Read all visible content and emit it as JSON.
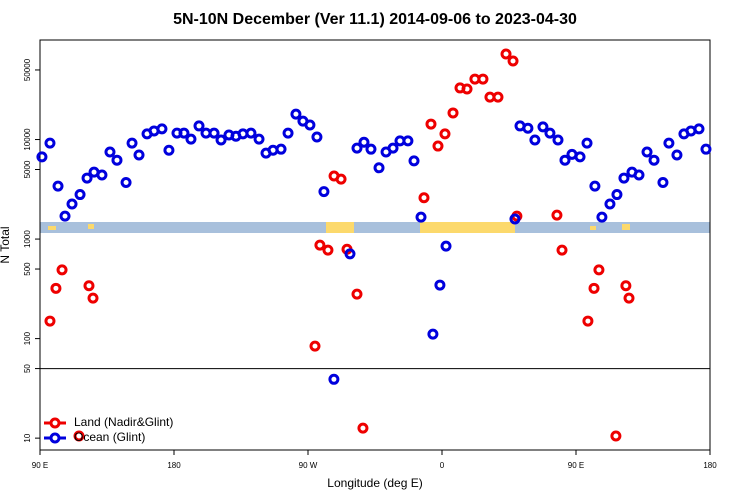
{
  "chart_data": {
    "type": "scatter",
    "title": "5N-10N December (Ver 11.1)   2014-09-06 to 2023-04-30",
    "xlabel": "Longitude (deg E)",
    "ylabel": "N Total",
    "xlim": [
      90,
      540
    ],
    "xticks": [
      {
        "value": 90,
        "label": "90 E"
      },
      180,
      {
        "value": 270,
        "label": "90 W"
      },
      {
        "value": 360,
        "label": "0"
      },
      {
        "value": 450,
        "label": "90 E"
      },
      {
        "value": 540,
        "label": "180"
      }
    ],
    "ylim": [
      7.6,
      100000
    ],
    "yticks": [
      10,
      50,
      100,
      500,
      1000,
      5000,
      10000,
      50000
    ],
    "log_y": true,
    "hline": 50,
    "legend": "lower left",
    "series": [
      {
        "name": "Land (Nadir&Glint)",
        "color": "#ee0000",
        "x": [
          96.7,
          100.7,
          104.8,
          116.2,
          122.9,
          125.6,
          274.7,
          278.0,
          283.4,
          287.5,
          292.2,
          296.2,
          302.9,
          306.9,
          347.9,
          352.6,
          357.3,
          362.0,
          367.4,
          372.1,
          376.8,
          382.1,
          387.5,
          392.2,
          397.6,
          403.0,
          407.7,
          410.3,
          437.2,
          440.6,
          458.0,
          462.1,
          465.4,
          476.8,
          483.5,
          485.6
        ],
        "values": [
          150,
          320,
          490,
          10.5,
          340,
          255,
          84,
          870,
          775,
          4300,
          4000,
          790,
          280,
          12.6,
          2600,
          14300,
          8600,
          11400,
          18500,
          33000,
          32200,
          40500,
          40500,
          26700,
          26700,
          72300,
          61500,
          1700,
          1740,
          775,
          150,
          320,
          490,
          10.5,
          340,
          255
        ]
      },
      {
        "name": "Ocean (Glint)",
        "color": "#0000dd",
        "x": [
          91.3,
          96.7,
          102.1,
          106.8,
          111.5,
          116.9,
          121.6,
          126.3,
          131.6,
          137.0,
          141.7,
          147.8,
          151.8,
          156.5,
          161.9,
          166.6,
          171.9,
          176.6,
          182.0,
          186.7,
          191.4,
          196.8,
          201.5,
          206.9,
          211.6,
          216.9,
          221.6,
          226.3,
          231.7,
          237.1,
          241.8,
          246.5,
          251.9,
          256.6,
          261.9,
          266.6,
          271.3,
          276.0,
          280.7,
          287.4,
          298.2,
          302.9,
          307.6,
          312.3,
          317.7,
          322.4,
          327.1,
          331.8,
          337.1,
          341.2,
          345.9,
          353.9,
          358.6,
          362.7,
          409.0,
          412.4,
          417.7,
          422.4,
          427.8,
          432.5,
          437.9,
          442.6,
          447.3,
          452.7,
          457.4,
          462.7,
          467.4,
          472.8,
          477.5,
          482.2,
          487.6,
          492.3,
          497.7,
          502.4,
          508.4,
          512.4,
          517.8,
          522.5,
          527.2,
          532.6,
          537.3
        ],
        "values": [
          6700,
          9200,
          3400,
          1700,
          2250,
          2800,
          4100,
          4700,
          4400,
          7500,
          6200,
          3700,
          9200,
          7000,
          11400,
          12200,
          12800,
          7800,
          11600,
          11600,
          10100,
          13700,
          11600,
          11600,
          9900,
          11100,
          10800,
          11400,
          11600,
          10100,
          7300,
          7800,
          8000,
          11600,
          18000,
          15300,
          14000,
          10600,
          3000,
          39,
          710,
          8200,
          9400,
          8000,
          5200,
          7500,
          8200,
          9700,
          9700,
          6100,
          1660,
          111,
          345,
          850,
          1590,
          13700,
          13000,
          9900,
          13400,
          11600,
          9900,
          6200,
          7100,
          6700,
          9200,
          3400,
          1660,
          2250,
          2800,
          4100,
          4700,
          4400,
          7500,
          6200,
          3700,
          9200,
          7000,
          11400,
          12200,
          12800,
          8000
        ]
      }
    ]
  }
}
